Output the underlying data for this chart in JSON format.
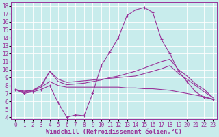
{
  "xlabel": "Windchill (Refroidissement éolien,°C)",
  "xlim": [
    -0.5,
    23.5
  ],
  "ylim": [
    3.8,
    18.5
  ],
  "xticks": [
    0,
    1,
    2,
    3,
    4,
    5,
    6,
    7,
    8,
    9,
    10,
    11,
    12,
    13,
    14,
    15,
    16,
    17,
    18,
    19,
    20,
    21,
    22,
    23
  ],
  "yticks": [
    4,
    5,
    6,
    7,
    8,
    9,
    10,
    11,
    12,
    13,
    14,
    15,
    16,
    17,
    18
  ],
  "bg_color": "#c8ecec",
  "line_color": "#993399",
  "grid_color": "#ffffff",
  "curve1_x": [
    0,
    1,
    2,
    3,
    4,
    5,
    6,
    7,
    8,
    9,
    10,
    11,
    12,
    13,
    14,
    15,
    16,
    17,
    18,
    19,
    20,
    21,
    22,
    23
  ],
  "curve1_y": [
    7.5,
    7.0,
    7.2,
    7.5,
    8.0,
    5.8,
    4.0,
    4.3,
    4.2,
    7.0,
    10.5,
    12.2,
    14.0,
    16.8,
    17.5,
    17.8,
    17.2,
    13.8,
    12.0,
    9.8,
    8.5,
    7.2,
    6.5,
    6.3
  ],
  "curve2_x": [
    0,
    1,
    2,
    3,
    4,
    5,
    6,
    7,
    8,
    9,
    10,
    11,
    12,
    13,
    14,
    15,
    16,
    17,
    18,
    19,
    20,
    21,
    22,
    23
  ],
  "curve2_y": [
    7.5,
    7.1,
    7.3,
    7.8,
    9.8,
    8.5,
    8.1,
    8.2,
    8.3,
    8.5,
    8.7,
    9.0,
    9.2,
    9.5,
    9.8,
    10.2,
    10.6,
    11.0,
    11.3,
    10.0,
    9.2,
    8.2,
    7.5,
    6.5
  ],
  "curve3_x": [
    0,
    1,
    2,
    3,
    4,
    5,
    6,
    7,
    8,
    9,
    10,
    11,
    12,
    13,
    14,
    15,
    16,
    17,
    18,
    19,
    20,
    21,
    22,
    23
  ],
  "curve3_y": [
    7.5,
    7.2,
    7.4,
    8.0,
    9.8,
    8.8,
    8.4,
    8.5,
    8.6,
    8.7,
    8.8,
    8.9,
    9.0,
    9.1,
    9.2,
    9.5,
    9.8,
    10.1,
    10.5,
    9.5,
    8.8,
    8.0,
    7.2,
    6.5
  ],
  "curve4_x": [
    0,
    1,
    2,
    3,
    4,
    5,
    6,
    7,
    8,
    9,
    10,
    11,
    12,
    13,
    14,
    15,
    16,
    17,
    18,
    19,
    20,
    21,
    22,
    23
  ],
  "curve4_y": [
    7.5,
    7.3,
    7.4,
    7.8,
    8.5,
    8.0,
    7.8,
    7.8,
    7.8,
    7.8,
    7.8,
    7.8,
    7.8,
    7.7,
    7.7,
    7.6,
    7.6,
    7.5,
    7.4,
    7.2,
    7.0,
    6.8,
    6.6,
    6.3
  ],
  "tick_fontsize": 5.5,
  "label_fontsize": 6.5
}
